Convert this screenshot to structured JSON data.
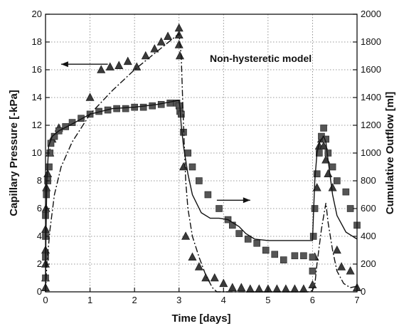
{
  "chart_data": {
    "type": "scatter",
    "annotation": "Non-hysteretic model",
    "grid": true,
    "x_axis": {
      "label": "Time [days]",
      "range": [
        0,
        7
      ],
      "ticks": [
        0,
        1,
        2,
        3,
        4,
        5,
        6,
        7
      ]
    },
    "y_left": {
      "label": "Capillary Pressure [-kPa]",
      "range": [
        0,
        20
      ],
      "ticks": [
        0,
        2,
        4,
        6,
        8,
        10,
        12,
        14,
        16,
        18,
        20
      ]
    },
    "y_right": {
      "label": "Cumulative Outflow [ml]",
      "range": [
        0,
        2000
      ],
      "ticks": [
        0,
        200,
        400,
        600,
        800,
        1000,
        1200,
        1400,
        1600,
        1800,
        2000
      ]
    },
    "arrows": [
      {
        "direction": "left",
        "from": [
          1.4,
          16.4
        ],
        "to": [
          0.35,
          16.4
        ]
      },
      {
        "direction": "right",
        "from": [
          3.85,
          6.6
        ],
        "to": [
          4.6,
          6.6
        ]
      }
    ],
    "series": [
      {
        "marker": "triangle",
        "axis": "left",
        "points": [
          [
            0.0,
            0.3
          ],
          [
            0.0,
            1.0
          ],
          [
            0.0,
            2.0
          ],
          [
            0.0,
            3.0
          ],
          [
            0.0,
            4.5
          ],
          [
            0.01,
            6.0
          ],
          [
            0.02,
            7.5
          ],
          [
            0.05,
            8.5
          ],
          [
            0.1,
            10.0
          ],
          [
            0.15,
            11.0
          ],
          [
            0.3,
            11.8
          ],
          [
            1.0,
            14.0
          ],
          [
            1.25,
            16.0
          ],
          [
            1.45,
            16.2
          ],
          [
            1.65,
            16.3
          ],
          [
            1.85,
            16.6
          ],
          [
            2.05,
            16.2
          ],
          [
            2.25,
            17.0
          ],
          [
            2.45,
            17.5
          ],
          [
            2.6,
            18.0
          ],
          [
            2.75,
            18.4
          ],
          [
            3.0,
            19.0
          ],
          [
            3.0,
            18.5
          ],
          [
            3.0,
            17.8
          ],
          [
            3.02,
            17.0
          ],
          [
            3.1,
            9.0
          ],
          [
            3.15,
            4.0
          ],
          [
            3.3,
            2.5
          ],
          [
            3.45,
            1.8
          ],
          [
            3.6,
            1.0
          ],
          [
            3.8,
            1.0
          ],
          [
            4.0,
            0.6
          ],
          [
            4.2,
            0.3
          ],
          [
            4.4,
            0.3
          ],
          [
            4.6,
            0.2
          ],
          [
            4.8,
            0.2
          ],
          [
            5.0,
            0.2
          ],
          [
            5.2,
            0.2
          ],
          [
            5.4,
            0.2
          ],
          [
            5.6,
            0.2
          ],
          [
            5.8,
            0.2
          ],
          [
            6.0,
            0.5
          ],
          [
            6.05,
            2.5
          ],
          [
            6.1,
            7.5
          ],
          [
            6.15,
            10.5
          ],
          [
            6.2,
            11.0
          ],
          [
            6.25,
            10.5
          ],
          [
            6.3,
            9.5
          ],
          [
            6.35,
            8.5
          ],
          [
            6.45,
            7.5
          ],
          [
            6.55,
            3.0
          ],
          [
            6.65,
            1.8
          ],
          [
            6.85,
            1.5
          ],
          [
            7.0,
            0.3
          ]
        ]
      },
      {
        "marker": "square",
        "axis": "right",
        "points": [
          [
            0.0,
            100
          ],
          [
            0.0,
            250
          ],
          [
            0.0,
            400
          ],
          [
            0.0,
            550
          ],
          [
            0.02,
            700
          ],
          [
            0.05,
            800
          ],
          [
            0.08,
            900
          ],
          [
            0.1,
            1000
          ],
          [
            0.12,
            1070
          ],
          [
            0.2,
            1120
          ],
          [
            0.3,
            1160
          ],
          [
            0.45,
            1190
          ],
          [
            0.6,
            1220
          ],
          [
            0.8,
            1250
          ],
          [
            1.0,
            1280
          ],
          [
            1.2,
            1300
          ],
          [
            1.4,
            1310
          ],
          [
            1.6,
            1320
          ],
          [
            1.8,
            1320
          ],
          [
            2.0,
            1330
          ],
          [
            2.2,
            1330
          ],
          [
            2.4,
            1340
          ],
          [
            2.6,
            1350
          ],
          [
            2.8,
            1360
          ],
          [
            2.95,
            1360
          ],
          [
            3.0,
            1340
          ],
          [
            3.02,
            1300
          ],
          [
            3.05,
            1280
          ],
          [
            3.1,
            1150
          ],
          [
            3.2,
            1000
          ],
          [
            3.3,
            900
          ],
          [
            3.45,
            800
          ],
          [
            3.65,
            700
          ],
          [
            3.9,
            600
          ],
          [
            4.1,
            520
          ],
          [
            4.2,
            480
          ],
          [
            4.35,
            420
          ],
          [
            4.55,
            380
          ],
          [
            4.75,
            350
          ],
          [
            4.95,
            300
          ],
          [
            5.15,
            270
          ],
          [
            5.35,
            230
          ],
          [
            5.6,
            260
          ],
          [
            5.8,
            260
          ],
          [
            6.0,
            150
          ],
          [
            6.0,
            250
          ],
          [
            6.02,
            400
          ],
          [
            6.05,
            600
          ],
          [
            6.1,
            850
          ],
          [
            6.15,
            1000
          ],
          [
            6.2,
            1120
          ],
          [
            6.25,
            1180
          ],
          [
            6.3,
            1100
          ],
          [
            6.35,
            1000
          ],
          [
            6.45,
            900
          ],
          [
            6.55,
            800
          ],
          [
            6.75,
            720
          ],
          [
            6.85,
            600
          ],
          [
            7.0,
            480
          ]
        ]
      },
      {
        "line_style": "solid",
        "axis": "right",
        "points": [
          [
            0.0,
            0
          ],
          [
            0.01,
            400
          ],
          [
            0.03,
            800
          ],
          [
            0.07,
            1050
          ],
          [
            0.15,
            1120
          ],
          [
            0.3,
            1160
          ],
          [
            0.6,
            1210
          ],
          [
            1.0,
            1280
          ],
          [
            1.5,
            1320
          ],
          [
            2.0,
            1330
          ],
          [
            2.5,
            1350
          ],
          [
            3.0,
            1380
          ],
          [
            3.02,
            1330
          ],
          [
            3.05,
            1200
          ],
          [
            3.1,
            1050
          ],
          [
            3.2,
            850
          ],
          [
            3.3,
            700
          ],
          [
            3.5,
            570
          ],
          [
            3.7,
            530
          ],
          [
            3.9,
            530
          ],
          [
            4.1,
            520
          ],
          [
            4.2,
            500
          ],
          [
            4.35,
            470
          ],
          [
            4.5,
            420
          ],
          [
            4.7,
            380
          ],
          [
            5.0,
            370
          ],
          [
            5.5,
            370
          ],
          [
            6.0,
            370
          ],
          [
            6.02,
            550
          ],
          [
            6.05,
            800
          ],
          [
            6.1,
            1000
          ],
          [
            6.15,
            1070
          ],
          [
            6.2,
            1100
          ],
          [
            6.25,
            1120
          ],
          [
            6.3,
            1080
          ],
          [
            6.35,
            950
          ],
          [
            6.45,
            700
          ],
          [
            6.55,
            550
          ],
          [
            6.75,
            430
          ],
          [
            7.0,
            380
          ]
        ]
      },
      {
        "line_style": "dash-dot",
        "axis": "left",
        "points": [
          [
            0.0,
            0
          ],
          [
            0.03,
            2.0
          ],
          [
            0.1,
            4.5
          ],
          [
            0.2,
            7.0
          ],
          [
            0.35,
            9.0
          ],
          [
            0.6,
            10.8
          ],
          [
            1.0,
            12.8
          ],
          [
            1.5,
            14.5
          ],
          [
            2.0,
            16.0
          ],
          [
            2.5,
            17.3
          ],
          [
            3.0,
            18.6
          ],
          [
            3.05,
            17.0
          ],
          [
            3.1,
            12.0
          ],
          [
            3.15,
            8.0
          ],
          [
            3.2,
            6.0
          ],
          [
            3.3,
            4.0
          ],
          [
            3.45,
            2.5
          ],
          [
            3.6,
            1.2
          ],
          [
            3.75,
            0.3
          ],
          [
            3.85,
            0.0
          ],
          [
            5.9,
            0.0
          ],
          [
            6.0,
            0.1
          ],
          [
            6.05,
            0.5
          ],
          [
            6.1,
            2.0
          ],
          [
            6.2,
            4.5
          ],
          [
            6.3,
            6.4
          ],
          [
            6.35,
            5.0
          ],
          [
            6.45,
            3.0
          ],
          [
            6.55,
            1.5
          ],
          [
            6.7,
            0.6
          ],
          [
            6.85,
            0.3
          ],
          [
            7.0,
            0.4
          ]
        ]
      }
    ]
  }
}
